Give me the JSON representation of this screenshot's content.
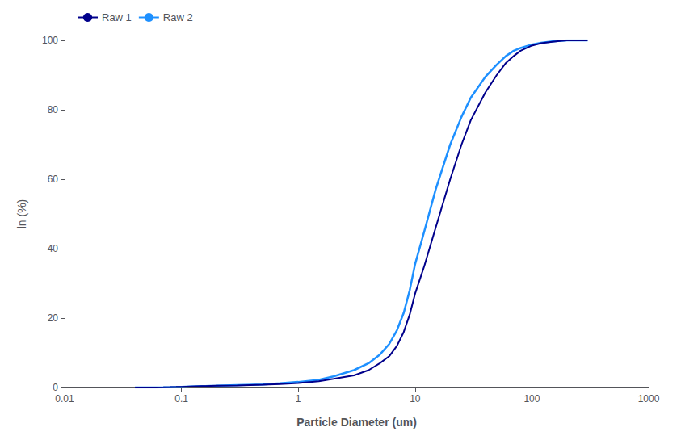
{
  "chart_data": {
    "type": "line",
    "xlabel": "Particle Diameter (um)",
    "ylabel": "ln (%)",
    "log": "x",
    "xlim": [
      0.01,
      1000
    ],
    "ylim": [
      0,
      100
    ],
    "xticks": [
      0.01,
      0.1,
      1,
      10,
      100,
      1000
    ],
    "yticks": [
      0,
      20,
      40,
      60,
      80,
      100
    ],
    "grid": false,
    "legend": "upper left",
    "x": [
      0.04,
      0.06,
      0.07,
      0.08,
      0.09,
      0.1,
      0.12,
      0.15,
      0.2,
      0.3,
      0.5,
      0.7,
      1.0,
      1.5,
      2.0,
      3.0,
      4.0,
      5.0,
      6.0,
      7.0,
      8.0,
      9.0,
      10.0,
      12.0,
      15.0,
      20.0,
      25.0,
      30.0,
      40.0,
      50.0,
      60.0,
      70.0,
      80.0,
      100.0,
      120.0,
      150.0,
      180.0,
      200.0,
      250.0,
      300.0
    ],
    "series": [
      {
        "name": "Raw 1",
        "color": "#00008B",
        "values": [
          0.0,
          0.0,
          0.05,
          0.1,
          0.15,
          0.2,
          0.3,
          0.4,
          0.5,
          0.6,
          0.8,
          1.0,
          1.3,
          1.8,
          2.5,
          3.5,
          5.0,
          7.0,
          9.0,
          12.0,
          16.0,
          21.0,
          27.0,
          35.0,
          46.0,
          60.0,
          70.0,
          77.0,
          85.0,
          90.0,
          93.5,
          95.5,
          97.0,
          98.5,
          99.2,
          99.6,
          99.9,
          100.0,
          100.0,
          100.0
        ]
      },
      {
        "name": "Raw 2",
        "color": "#1E90FF",
        "values": [
          0.0,
          0.0,
          0.05,
          0.1,
          0.15,
          0.2,
          0.3,
          0.4,
          0.5,
          0.7,
          0.9,
          1.2,
          1.6,
          2.2,
          3.2,
          5.0,
          7.0,
          9.5,
          12.5,
          16.5,
          21.5,
          28.0,
          35.5,
          45.0,
          57.0,
          70.0,
          78.0,
          83.5,
          89.5,
          93.0,
          95.5,
          97.0,
          97.8,
          98.8,
          99.3,
          99.7,
          99.9,
          100.0,
          100.0,
          100.0
        ]
      }
    ]
  }
}
